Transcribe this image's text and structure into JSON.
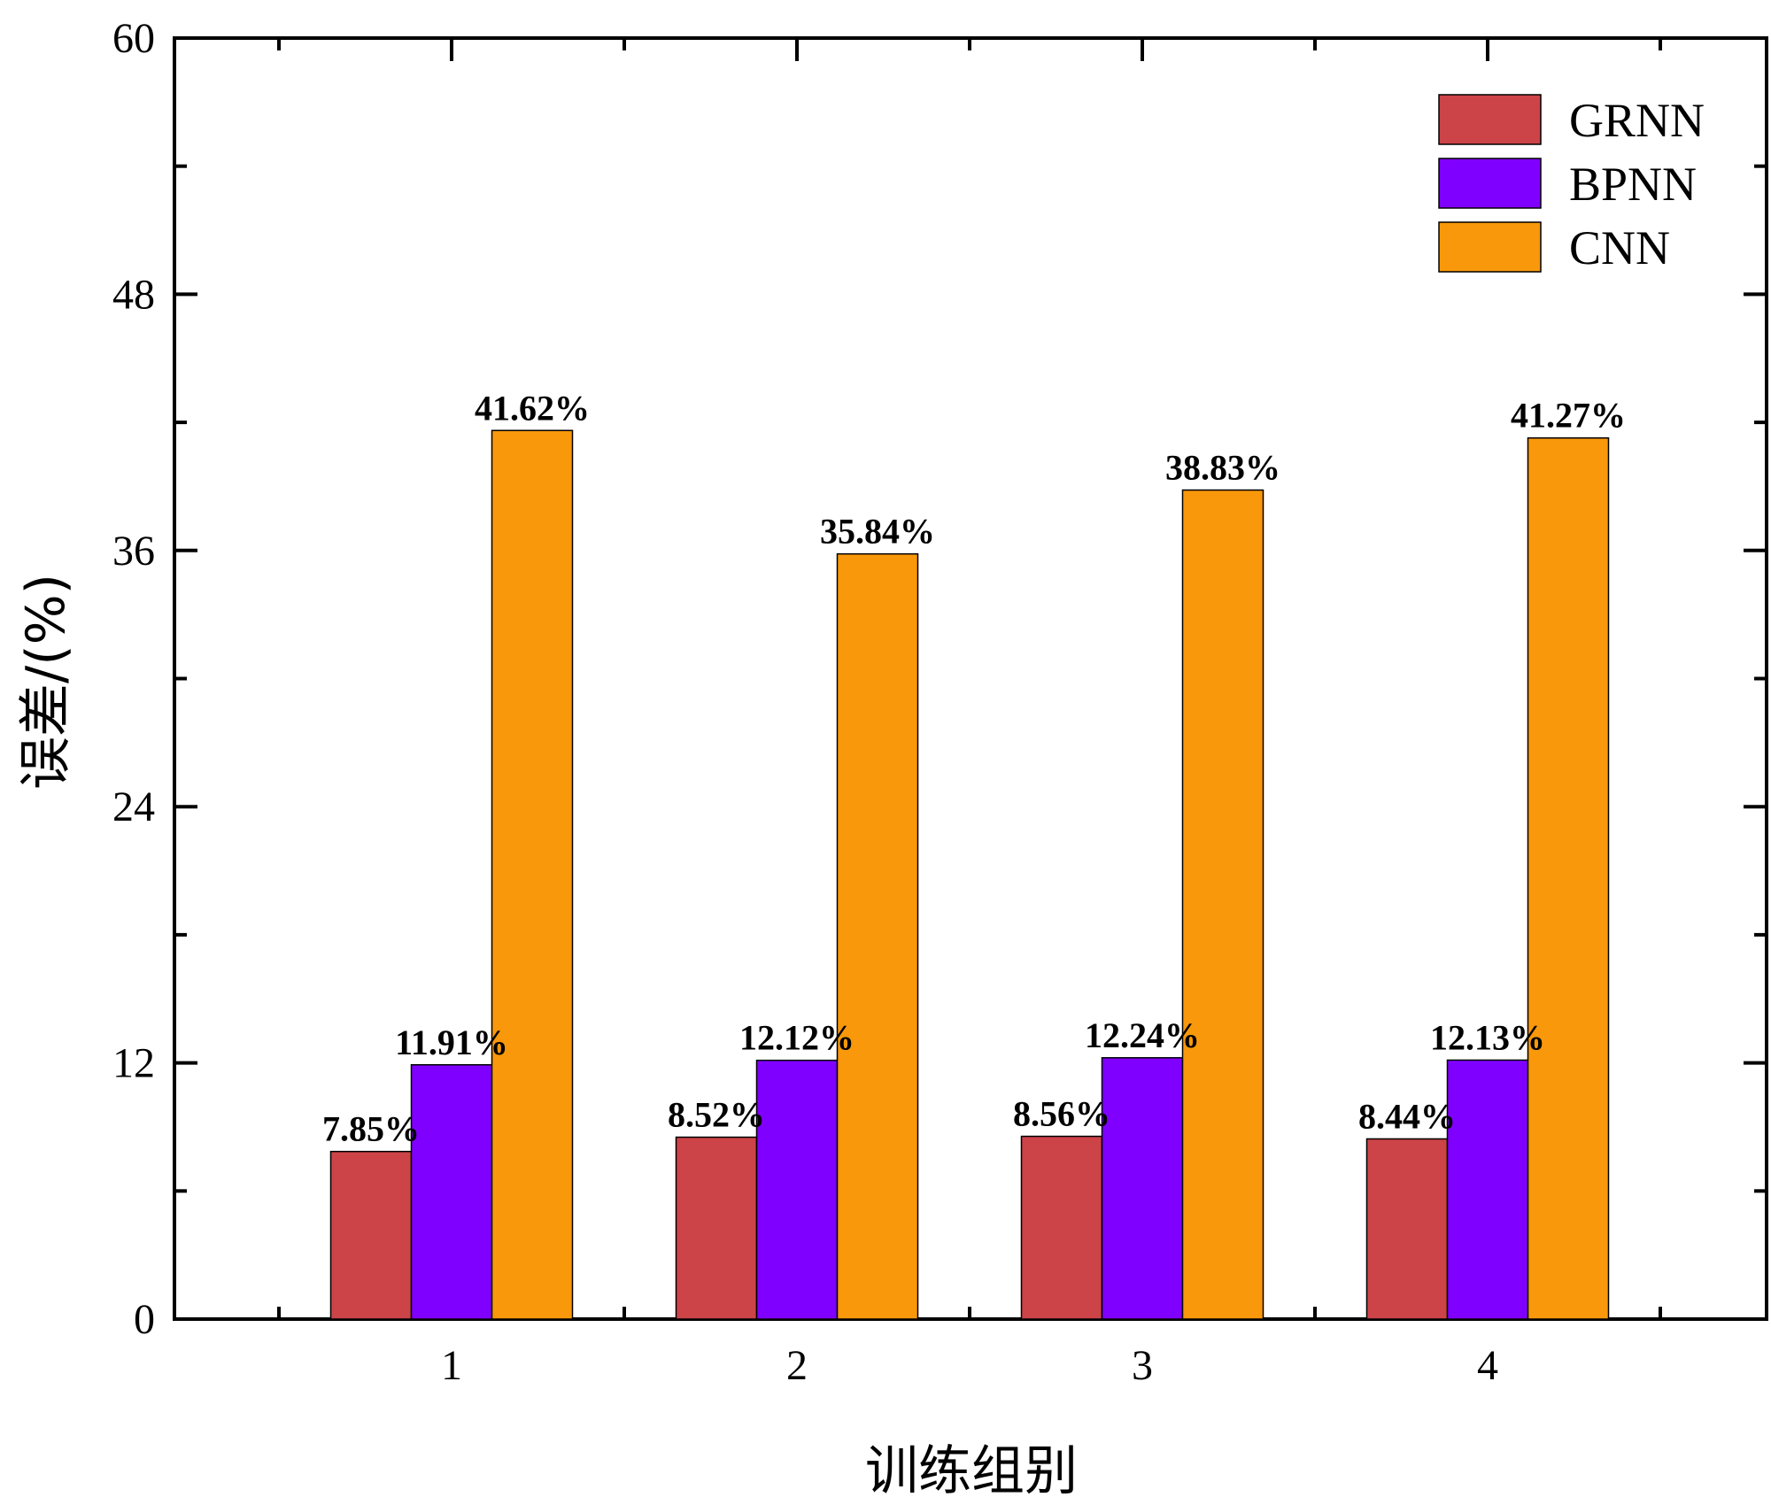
{
  "chart_data": {
    "type": "bar",
    "title": "",
    "xlabel": "训练组别",
    "ylabel": "误差/(%)",
    "categories": [
      "1",
      "2",
      "3",
      "4"
    ],
    "ylim": [
      0,
      60
    ],
    "yticks": [
      0,
      12,
      24,
      36,
      48,
      60
    ],
    "grid": false,
    "legend_position": "top-right",
    "series": [
      {
        "name": "GRNN",
        "color": "#cc4348",
        "values": [
          7.85,
          8.52,
          8.56,
          8.44
        ],
        "labels": [
          "7.85%",
          "8.52%",
          "8.56%",
          "8.44%"
        ]
      },
      {
        "name": "BPNN",
        "color": "#8000ff",
        "values": [
          11.91,
          12.12,
          12.24,
          12.13
        ],
        "labels": [
          "11.91%",
          "12.12%",
          "12.24%",
          "12.13%"
        ]
      },
      {
        "name": "CNN",
        "color": "#f8980a",
        "values": [
          41.62,
          35.84,
          38.83,
          41.27
        ],
        "labels": [
          "41.62%",
          "35.84%",
          "38.83%",
          "41.27%"
        ]
      }
    ]
  }
}
